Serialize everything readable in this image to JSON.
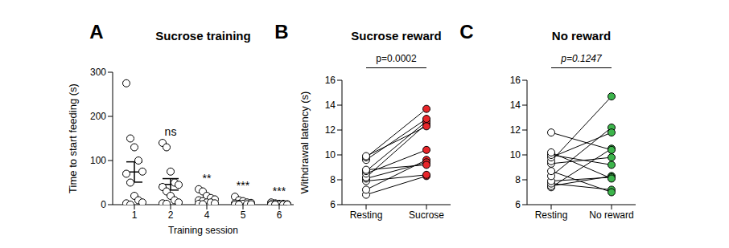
{
  "chart_data": [
    {
      "panel": "A",
      "type": "scatter",
      "title": "Sucrose training",
      "x_label": "Training session",
      "y_label": "Time to start feeding (s)",
      "categories": [
        "1",
        "2",
        "4",
        "5",
        "6"
      ],
      "points": [
        [
          275,
          150,
          130,
          100,
          75,
          70,
          50,
          20,
          10,
          5,
          3,
          0
        ],
        [
          140,
          130,
          75,
          50,
          45,
          40,
          30,
          20,
          10,
          5,
          3,
          2
        ],
        [
          35,
          30,
          20,
          15,
          12,
          10,
          8,
          5,
          5,
          3,
          2,
          1
        ],
        [
          18,
          10,
          8,
          5,
          4,
          3,
          2,
          2,
          1,
          1,
          0,
          0
        ],
        [
          5,
          3,
          2,
          2,
          1,
          1,
          1,
          0,
          0,
          0,
          0,
          0
        ]
      ],
      "mean": [
        74,
        46,
        12,
        4.5,
        1.25
      ],
      "sem": [
        23,
        13,
        3,
        1.5,
        0.5
      ],
      "significance": [
        null,
        "ns",
        "**",
        "***",
        "***"
      ],
      "ylim": [
        0,
        300
      ],
      "yticks": [
        0,
        100,
        200,
        300
      ]
    },
    {
      "panel": "B",
      "type": "line",
      "title": "Sucrose reward",
      "y_label": "Withdrawal latency (s)",
      "annotation": "p=0.0002",
      "categories": [
        "Resting",
        "Sucrose"
      ],
      "colors": [
        "#ffffff",
        "#e8262a"
      ],
      "series": [
        {
          "values": [
            6.8,
            8.3
          ]
        },
        {
          "values": [
            7.2,
            9.6
          ]
        },
        {
          "values": [
            7.9,
            8.4
          ]
        },
        {
          "values": [
            8.1,
            9.4
          ]
        },
        {
          "values": [
            8.2,
            12.5
          ]
        },
        {
          "values": [
            8.5,
            10.4
          ]
        },
        {
          "values": [
            8.7,
            12.7
          ]
        },
        {
          "values": [
            8.8,
            9.2
          ]
        },
        {
          "values": [
            9.6,
            12.9
          ]
        },
        {
          "values": [
            9.8,
            13.7
          ]
        },
        {
          "values": [
            9.9,
            12.3
          ]
        }
      ],
      "ylim": [
        6,
        16
      ],
      "yticks": [
        6,
        8,
        10,
        12,
        14,
        16
      ]
    },
    {
      "panel": "C",
      "type": "line",
      "title": "No reward",
      "annotation": "p=0.1247",
      "categories": [
        "Resting",
        "No reward"
      ],
      "colors": [
        "#ffffff",
        "#3cb44b"
      ],
      "series": [
        {
          "values": [
            7.4,
            10.5
          ]
        },
        {
          "values": [
            7.5,
            8.3
          ]
        },
        {
          "values": [
            7.7,
            7.2
          ]
        },
        {
          "values": [
            7.9,
            8.2
          ]
        },
        {
          "values": [
            8.3,
            12.2
          ]
        },
        {
          "values": [
            8.7,
            7.0
          ]
        },
        {
          "values": [
            9.3,
            9.8
          ]
        },
        {
          "values": [
            9.5,
            14.7
          ]
        },
        {
          "values": [
            9.8,
            11.8
          ]
        },
        {
          "values": [
            10.0,
            9.2
          ]
        },
        {
          "values": [
            10.2,
            8.1
          ]
        },
        {
          "values": [
            11.8,
            10.4
          ]
        }
      ],
      "ylim": [
        6,
        16
      ],
      "yticks": [
        6,
        8,
        10,
        12,
        14,
        16
      ]
    }
  ]
}
